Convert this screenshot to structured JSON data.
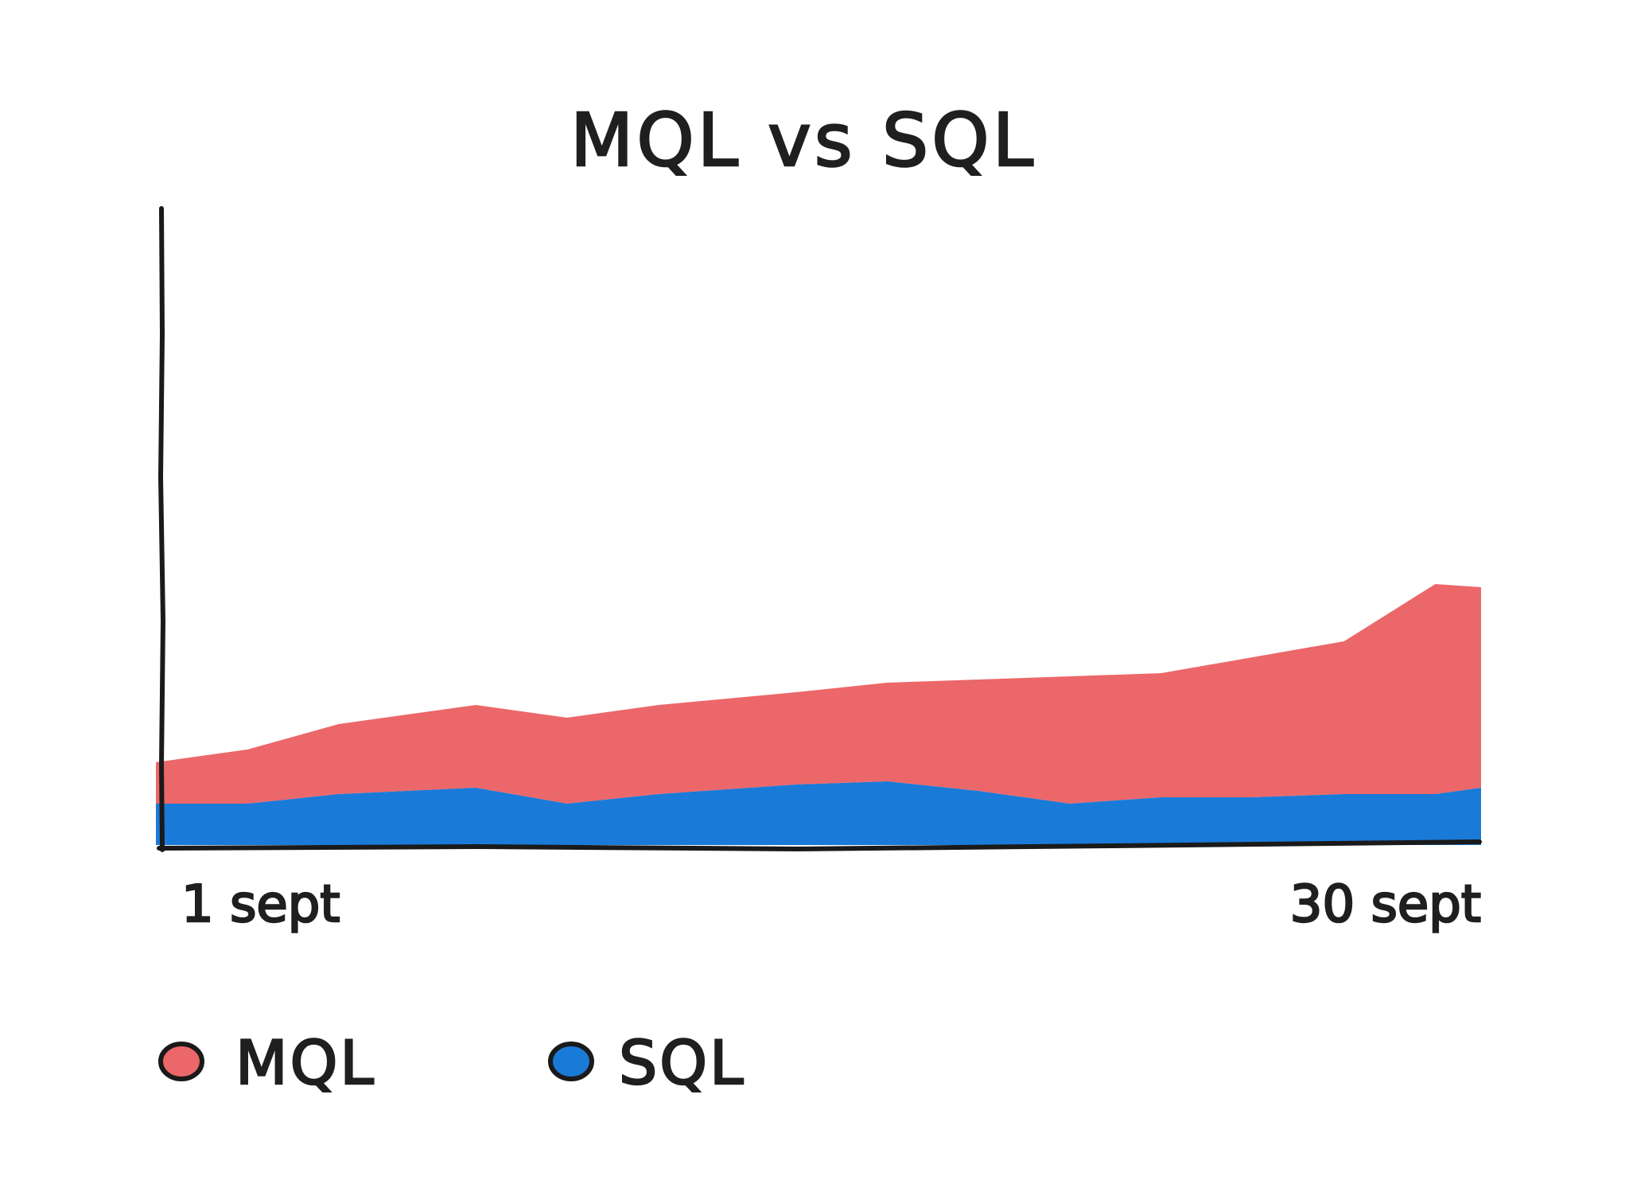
{
  "chart_data": {
    "type": "area",
    "stacked": true,
    "title": "MQL vs SQL",
    "xlabel": "",
    "ylabel": "",
    "x": [
      1,
      3,
      5,
      8,
      10,
      12,
      15,
      17,
      19,
      21,
      23,
      25,
      27,
      29,
      30
    ],
    "x_tick_labels": [
      "1 sept",
      "30 sept"
    ],
    "x_range": [
      1,
      30
    ],
    "ylim": [
      0,
      100
    ],
    "grid": false,
    "legend_position": "bottom-left",
    "series": [
      {
        "name": "SQL",
        "color": "#1a7ad8",
        "values": [
          6.5,
          6.5,
          8.0,
          9.0,
          6.5,
          8.0,
          9.5,
          10.0,
          8.5,
          6.5,
          7.5,
          7.5,
          8.0,
          8.0,
          9.0
        ]
      },
      {
        "name": "MQL",
        "color": "#ec6769",
        "values": [
          6.5,
          8.5,
          11.0,
          13.0,
          13.5,
          14.0,
          14.5,
          15.5,
          17.5,
          20.0,
          19.5,
          22.0,
          24.0,
          33.0,
          31.5
        ]
      }
    ]
  },
  "legend": {
    "items": [
      {
        "label": "MQL",
        "color": "#ec6769"
      },
      {
        "label": "SQL",
        "color": "#1a7ad8"
      }
    ]
  }
}
